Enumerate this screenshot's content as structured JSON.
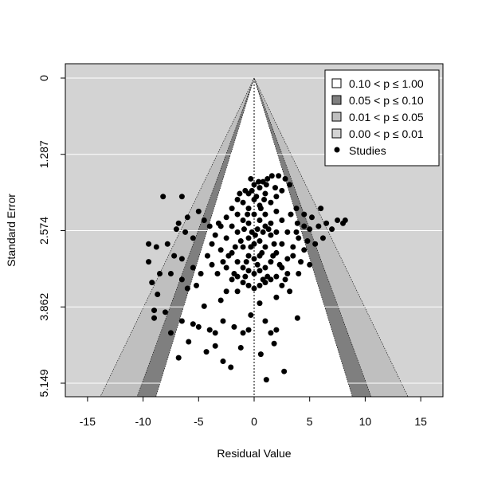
{
  "chart_data": {
    "type": "scatter",
    "subtype": "contour-enhanced funnel plot",
    "title": "",
    "xlabel": "Residual Value",
    "ylabel": "Standard Error",
    "xlim": [
      -17,
      17
    ],
    "ylim": [
      5.149,
      0
    ],
    "y_reversed": true,
    "x_ticks": [
      -15,
      -10,
      -5,
      0,
      5,
      10,
      15
    ],
    "x_tick_labels": [
      "-15",
      "-10",
      "-5",
      "0",
      "5",
      "10",
      "15"
    ],
    "y_ticks": [
      0,
      1.287,
      2.574,
      3.862,
      5.149
    ],
    "y_tick_labels": [
      "0",
      "1.287",
      "2.574",
      "3.862",
      "5.149"
    ],
    "grid": true,
    "legend_position": "top-right",
    "background_color": "#d3d3d3",
    "contours": [
      {
        "label": "0.10 < p ≤ 1.00",
        "color": "#ffffff",
        "z": 1.645
      },
      {
        "label": "0.05 < p ≤ 0.10",
        "color": "#7f7f7f",
        "z": 1.96
      },
      {
        "label": "0.01 < p ≤ 0.05",
        "color": "#bfbfbf",
        "z": 2.576
      },
      {
        "label": "0.00 < p ≤ 0.01",
        "color": "#d3d3d3",
        "z": null
      }
    ],
    "studies_label": "Studies",
    "studies_color": "#000000",
    "points": [
      [
        -8.2,
        2.0
      ],
      [
        -6.5,
        2.0
      ],
      [
        -5.0,
        2.25
      ],
      [
        -6.0,
        2.35
      ],
      [
        -6.8,
        2.45
      ],
      [
        -4.5,
        2.4
      ],
      [
        -4.0,
        2.5
      ],
      [
        -7.0,
        2.55
      ],
      [
        -6.2,
        2.6
      ],
      [
        -5.5,
        2.7
      ],
      [
        -9.5,
        2.8
      ],
      [
        -8.8,
        2.85
      ],
      [
        -7.8,
        2.8
      ],
      [
        -7.2,
        3.0
      ],
      [
        -6.5,
        3.05
      ],
      [
        -9.5,
        3.1
      ],
      [
        -8.5,
        3.3
      ],
      [
        -7.5,
        3.3
      ],
      [
        -9.2,
        3.45
      ],
      [
        -6.5,
        3.4
      ],
      [
        -6.0,
        3.55
      ],
      [
        -5.2,
        3.5
      ],
      [
        -4.8,
        3.3
      ],
      [
        -5.5,
        3.2
      ],
      [
        -3.8,
        3.15
      ],
      [
        -8.7,
        3.65
      ],
      [
        -4.5,
        3.85
      ],
      [
        -3.0,
        3.75
      ],
      [
        -2.5,
        3.6
      ],
      [
        -1.5,
        3.6
      ],
      [
        -8.0,
        3.95
      ],
      [
        -9.0,
        3.92
      ],
      [
        -9.0,
        4.05
      ],
      [
        -6.5,
        4.1
      ],
      [
        -5.5,
        4.15
      ],
      [
        -5.0,
        4.2
      ],
      [
        -4.0,
        4.25
      ],
      [
        -3.5,
        4.3
      ],
      [
        -2.8,
        4.1
      ],
      [
        -1.8,
        4.2
      ],
      [
        -1.0,
        4.3
      ],
      [
        -0.3,
        4.0
      ],
      [
        -0.5,
        4.25
      ],
      [
        0.5,
        3.8
      ],
      [
        1.0,
        4.1
      ],
      [
        1.5,
        4.3
      ],
      [
        2.0,
        4.25
      ],
      [
        -7.5,
        4.3
      ],
      [
        -2.8,
        4.78
      ],
      [
        1.1,
        5.09
      ],
      [
        -6.8,
        4.72
      ],
      [
        -5.9,
        4.45
      ],
      [
        -1.2,
        4.55
      ],
      [
        2.7,
        4.95
      ],
      [
        0.6,
        4.66
      ],
      [
        -3.5,
        4.52
      ],
      [
        1.8,
        4.48
      ],
      [
        -4.3,
        4.62
      ],
      [
        3.9,
        4.05
      ],
      [
        -2.1,
        4.88
      ],
      [
        3.9,
        2.45
      ],
      [
        4.5,
        2.5
      ],
      [
        5.0,
        2.55
      ],
      [
        5.8,
        2.5
      ],
      [
        6.5,
        2.45
      ],
      [
        7.5,
        2.4
      ],
      [
        8.0,
        2.45
      ],
      [
        8.2,
        2.4
      ],
      [
        4.0,
        2.7
      ],
      [
        4.8,
        2.75
      ],
      [
        5.5,
        2.8
      ],
      [
        6.2,
        2.7
      ],
      [
        3.5,
        3.0
      ],
      [
        4.2,
        3.1
      ],
      [
        5.0,
        3.15
      ],
      [
        3.0,
        3.3
      ],
      [
        4.0,
        3.3
      ],
      [
        2.5,
        3.5
      ],
      [
        3.2,
        3.6
      ],
      [
        2.0,
        3.7
      ],
      [
        4.5,
        2.3
      ],
      [
        3.8,
        2.2
      ],
      [
        5.2,
        2.35
      ],
      [
        7.0,
        2.55
      ],
      [
        6.0,
        2.2
      ],
      [
        2.2,
        1.65
      ],
      [
        2.8,
        1.7
      ],
      [
        3.2,
        1.8
      ],
      [
        2.5,
        1.9
      ],
      [
        2.0,
        2.0
      ],
      [
        1.6,
        1.65
      ],
      [
        1.2,
        1.7
      ],
      [
        0.4,
        1.75
      ],
      [
        -0.8,
        1.9
      ],
      [
        -1.5,
        2.05
      ],
      [
        -2.0,
        2.2
      ],
      [
        -2.5,
        2.35
      ],
      [
        -3.0,
        2.5
      ],
      [
        -3.5,
        2.65
      ],
      [
        -3.0,
        2.9
      ],
      [
        -2.5,
        3.2
      ],
      [
        -2.0,
        3.4
      ],
      [
        -1.5,
        3.35
      ],
      [
        -1.0,
        3.45
      ],
      [
        -0.5,
        3.5
      ],
      [
        0.0,
        3.55
      ],
      [
        0.5,
        3.5
      ],
      [
        1.0,
        3.45
      ],
      [
        1.5,
        3.4
      ],
      [
        2.0,
        3.35
      ],
      [
        2.5,
        3.2
      ],
      [
        3.0,
        3.05
      ],
      [
        3.5,
        2.85
      ],
      [
        3.0,
        2.6
      ],
      [
        2.5,
        2.4
      ],
      [
        2.0,
        2.25
      ],
      [
        1.5,
        2.1
      ],
      [
        1.0,
        1.95
      ],
      [
        0.5,
        1.85
      ],
      [
        0.0,
        1.8
      ],
      [
        -0.5,
        1.95
      ],
      [
        -1.0,
        2.1
      ],
      [
        -1.5,
        2.3
      ],
      [
        -2.0,
        2.5
      ],
      [
        -2.5,
        2.7
      ],
      [
        -2.0,
        2.95
      ],
      [
        -1.5,
        3.1
      ],
      [
        -1.0,
        3.2
      ],
      [
        -0.5,
        3.25
      ],
      [
        0.0,
        3.3
      ],
      [
        0.5,
        3.25
      ],
      [
        1.0,
        3.2
      ],
      [
        1.5,
        3.1
      ],
      [
        2.0,
        2.95
      ],
      [
        2.5,
        2.8
      ],
      [
        2.0,
        2.6
      ],
      [
        1.5,
        2.45
      ],
      [
        1.0,
        2.3
      ],
      [
        0.5,
        2.15
      ],
      [
        0.0,
        2.05
      ],
      [
        -0.5,
        2.2
      ],
      [
        -1.0,
        2.4
      ],
      [
        -1.5,
        2.6
      ],
      [
        -1.0,
        2.85
      ],
      [
        -0.5,
        3.0
      ],
      [
        0.0,
        3.05
      ],
      [
        0.5,
        3.0
      ],
      [
        1.0,
        2.85
      ],
      [
        1.5,
        2.65
      ],
      [
        1.0,
        2.5
      ],
      [
        0.5,
        2.4
      ],
      [
        0.0,
        2.3
      ],
      [
        -0.5,
        2.45
      ],
      [
        -0.5,
        2.7
      ],
      [
        0.0,
        2.8
      ],
      [
        0.5,
        2.75
      ],
      [
        0.3,
        2.55
      ],
      [
        0.8,
        2.6
      ],
      [
        -0.2,
        2.6
      ],
      [
        -1.2,
        2.75
      ],
      [
        1.8,
        2.8
      ],
      [
        -2.8,
        3.1
      ],
      [
        2.8,
        3.4
      ],
      [
        -3.3,
        3.3
      ],
      [
        3.3,
        2.3
      ],
      [
        -0.2,
        1.9
      ],
      [
        0.2,
        2.0
      ],
      [
        0.6,
        2.2
      ],
      [
        -0.6,
        2.3
      ],
      [
        0.9,
        2.05
      ],
      [
        -0.9,
        2.55
      ],
      [
        1.3,
        2.55
      ],
      [
        -1.7,
        2.85
      ],
      [
        1.7,
        3.0
      ],
      [
        -2.3,
        3.0
      ],
      [
        2.3,
        3.15
      ],
      [
        -1.8,
        3.3
      ],
      [
        1.2,
        3.35
      ],
      [
        -0.8,
        3.35
      ],
      [
        0.8,
        3.4
      ],
      [
        -3.8,
        2.8
      ],
      [
        3.8,
        2.6
      ],
      [
        -4.2,
        3.0
      ],
      [
        4.5,
        2.9
      ],
      [
        -3.2,
        2.45
      ],
      [
        0.1,
        2.65
      ],
      [
        -0.3,
        2.85
      ],
      [
        0.7,
        2.95
      ],
      [
        -0.7,
        3.1
      ],
      [
        0.3,
        3.15
      ],
      [
        1.1,
        1.8
      ],
      [
        -0.3,
        1.7
      ],
      [
        0.8,
        1.75
      ],
      [
        1.9,
        1.85
      ],
      [
        -1.3,
        1.95
      ]
    ]
  }
}
